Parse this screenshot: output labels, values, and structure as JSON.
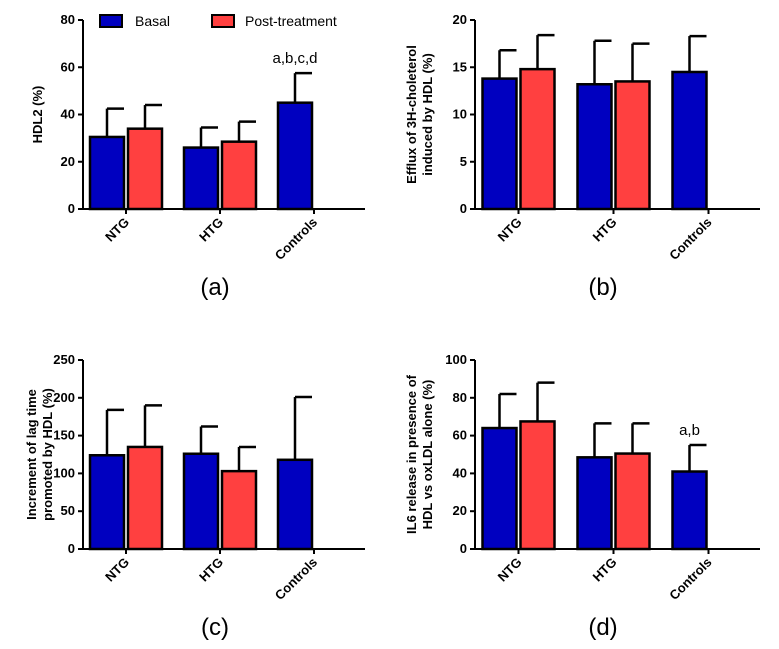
{
  "legend": {
    "basal": "Basal",
    "post": "Post-treatment"
  },
  "colors": {
    "basal": "#0000c0",
    "post": "#ff4040"
  },
  "chart_data": [
    {
      "type": "bar",
      "panel_label": "(a)",
      "ylabel": [
        "HDL2 (%)"
      ],
      "ylim": [
        0,
        80
      ],
      "yticks": [
        0,
        20,
        40,
        60,
        80
      ],
      "categories": [
        "NTG",
        "HTG",
        "Controls"
      ],
      "series": [
        {
          "name": "Basal",
          "values": [
            30.5,
            26,
            45
          ],
          "errors": [
            12,
            8.5,
            12.5
          ]
        },
        {
          "name": "Post-treatment",
          "values": [
            34,
            28.5,
            null
          ],
          "errors": [
            10,
            8.5,
            null
          ]
        }
      ],
      "annotation": {
        "category": "Controls",
        "text": "a,b,c,d"
      }
    },
    {
      "type": "bar",
      "panel_label": "(b)",
      "ylabel": [
        "Efflux of 3H-choleterol",
        "induced by HDL (%)"
      ],
      "ylim": [
        0,
        20
      ],
      "yticks": [
        0,
        5,
        10,
        15,
        20
      ],
      "categories": [
        "NTG",
        "HTG",
        "Controls"
      ],
      "series": [
        {
          "name": "Basal",
          "values": [
            13.8,
            13.2,
            14.5
          ],
          "errors": [
            3,
            4.6,
            3.8
          ]
        },
        {
          "name": "Post-treatment",
          "values": [
            14.8,
            13.5,
            null
          ],
          "errors": [
            3.6,
            4,
            null
          ]
        }
      ]
    },
    {
      "type": "bar",
      "panel_label": "(c)",
      "ylabel": [
        "Increment of lag time",
        "promoted by HDL (%)"
      ],
      "ylim": [
        0,
        250
      ],
      "yticks": [
        0,
        50,
        100,
        150,
        200,
        250
      ],
      "categories": [
        "NTG",
        "HTG",
        "Controls"
      ],
      "series": [
        {
          "name": "Basal",
          "values": [
            124,
            126,
            118
          ],
          "errors": [
            60,
            36,
            83
          ]
        },
        {
          "name": "Post-treatment",
          "values": [
            135,
            103,
            null
          ],
          "errors": [
            55,
            32,
            null
          ]
        }
      ]
    },
    {
      "type": "bar",
      "panel_label": "(d)",
      "ylabel": [
        "IL6 release in presence of",
        "HDL vs oxLDL alone (%)"
      ],
      "ylim": [
        0,
        100
      ],
      "yticks": [
        0,
        20,
        40,
        60,
        80,
        100
      ],
      "categories": [
        "NTG",
        "HTG",
        "Controls"
      ],
      "series": [
        {
          "name": "Basal",
          "values": [
            64,
            48.5,
            41
          ],
          "errors": [
            18,
            18,
            14
          ]
        },
        {
          "name": "Post-treatment",
          "values": [
            67.5,
            50.5,
            null
          ],
          "errors": [
            20.5,
            16,
            null
          ]
        }
      ],
      "annotation": {
        "category": "Controls",
        "text": "a,b"
      }
    }
  ]
}
